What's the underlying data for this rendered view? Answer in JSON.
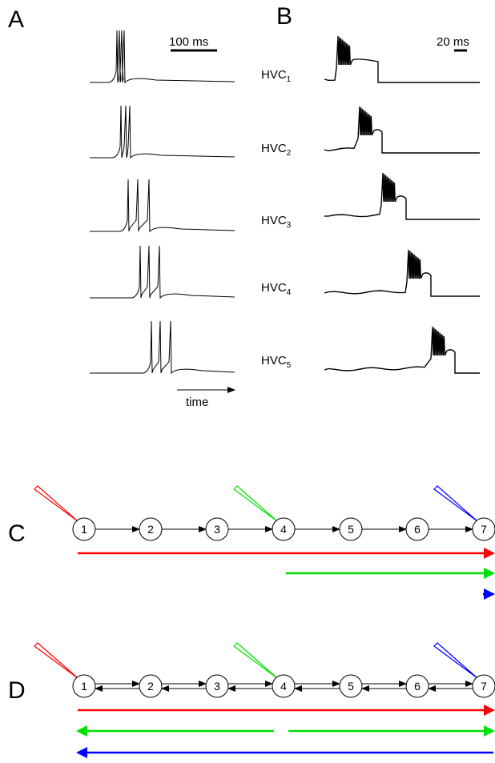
{
  "panel_labels": {
    "a": "A",
    "b": "B",
    "c": "C",
    "d": "D"
  },
  "scalebars": {
    "a": "100 ms",
    "b": "20 ms"
  },
  "time_axis": {
    "label": "time"
  },
  "neurons": [
    {
      "base": "HVC",
      "sub": "1"
    },
    {
      "base": "HVC",
      "sub": "2"
    },
    {
      "base": "HVC",
      "sub": "3"
    },
    {
      "base": "HVC",
      "sub": "4"
    },
    {
      "base": "HVC",
      "sub": "5"
    }
  ],
  "chain_nodes": [
    "1",
    "2",
    "3",
    "4",
    "5",
    "6",
    "7"
  ],
  "colors": {
    "red": "#ff0000",
    "green": "#00e000",
    "blue": "#0000ff",
    "ink": "#000000"
  }
}
